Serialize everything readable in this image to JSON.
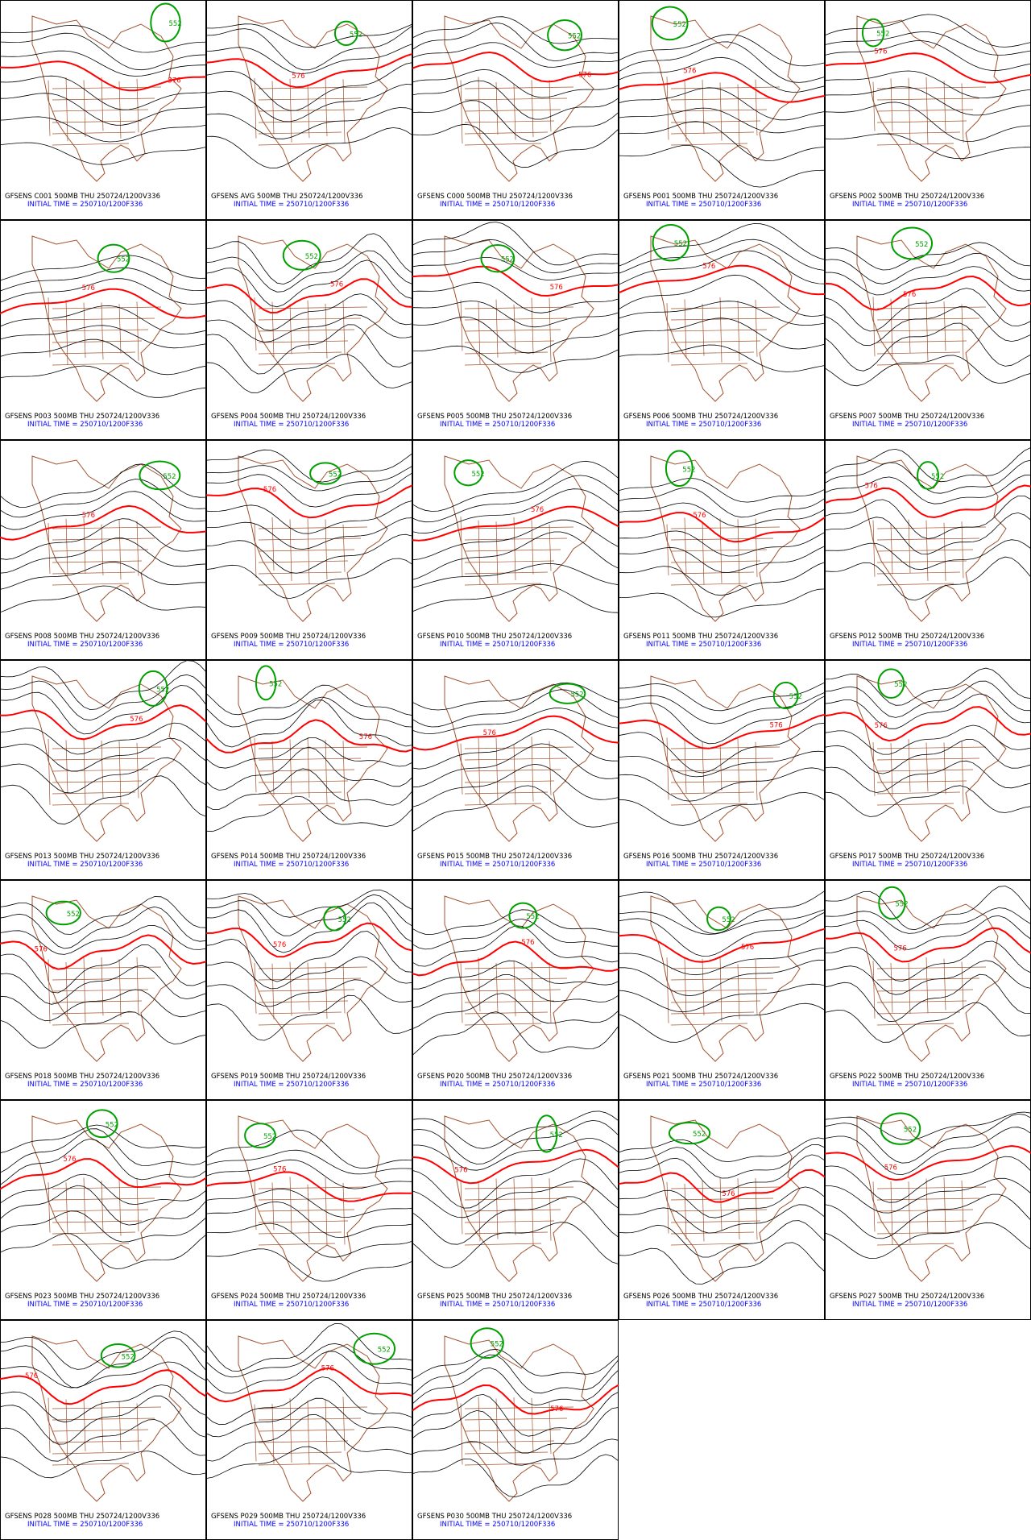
{
  "title_prefix": "GFSENS",
  "contours": [
    {
      "value": 576,
      "color": "#ff0000"
    },
    {
      "value": 552,
      "color": "#00a000"
    }
  ],
  "panels": [
    {
      "label": "GFSENS C001 500MB THU 250724/1200V336",
      "init": "INITIAL TIME = 250710/1200F336"
    },
    {
      "label": "GFSENS AVG 500MB THU 250724/1200V336",
      "init": "INITIAL TIME = 250710/1200F336"
    },
    {
      "label": "GFSENS C000 500MB THU 250724/1200V336",
      "init": "INITIAL TIME = 250710/1200F336"
    },
    {
      "label": "GFSENS P001 500MB THU 250724/1200V336",
      "init": "INITIAL TIME = 250710/1200F336"
    },
    {
      "label": "GFSENS P002 500MB THU 250724/1200V336",
      "init": "INITIAL TIME = 250710/1200F336"
    },
    {
      "label": "GFSENS P003 500MB THU 250724/1200V336",
      "init": "INITIAL TIME = 250710/1200F336"
    },
    {
      "label": "GFSENS P004 500MB THU 250724/1200V336",
      "init": "INITIAL TIME = 250710/1200F336"
    },
    {
      "label": "GFSENS P005 500MB THU 250724/1200V336",
      "init": "INITIAL TIME = 250710/1200F336"
    },
    {
      "label": "GFSENS P006 500MB THU 250724/1200V336",
      "init": "INITIAL TIME = 250710/1200F336"
    },
    {
      "label": "GFSENS P007 500MB THU 250724/1200V336",
      "init": "INITIAL TIME = 250710/1200F336"
    },
    {
      "label": "GFSENS P008 500MB THU 250724/1200V336",
      "init": "INITIAL TIME = 250710/1200F336"
    },
    {
      "label": "GFSENS P009 500MB THU 250724/1200V336",
      "init": "INITIAL TIME = 250710/1200F336"
    },
    {
      "label": "GFSENS P010 500MB THU 250724/1200V336",
      "init": "INITIAL TIME = 250710/1200F336"
    },
    {
      "label": "GFSENS P011 500MB THU 250724/1200V336",
      "init": "INITIAL TIME = 250710/1200F336"
    },
    {
      "label": "GFSENS P012 500MB THU 250724/1200V336",
      "init": "INITIAL TIME = 250710/1200F336"
    },
    {
      "label": "GFSENS P013 500MB THU 250724/1200V336",
      "init": "INITIAL TIME = 250710/1200F336"
    },
    {
      "label": "GFSENS P014 500MB THU 250724/1200V336",
      "init": "INITIAL TIME = 250710/1200F336"
    },
    {
      "label": "GFSENS P015 500MB THU 250724/1200V336",
      "init": "INITIAL TIME = 250710/1200F336"
    },
    {
      "label": "GFSENS P016 500MB THU 250724/1200V336",
      "init": "INITIAL TIME = 250710/1200F336"
    },
    {
      "label": "GFSENS P017 500MB THU 250724/1200V336",
      "init": "INITIAL TIME = 250710/1200F336"
    },
    {
      "label": "GFSENS P018 500MB THU 250724/1200V336",
      "init": "INITIAL TIME = 250710/1200F336"
    },
    {
      "label": "GFSENS P019 500MB THU 250724/1200V336",
      "init": "INITIAL TIME = 250710/1200F336"
    },
    {
      "label": "GFSENS P020 500MB THU 250724/1200V336",
      "init": "INITIAL TIME = 250710/1200F336"
    },
    {
      "label": "GFSENS P021 500MB THU 250724/1200V336",
      "init": "INITIAL TIME = 250710/1200F336"
    },
    {
      "label": "GFSENS P022 500MB THU 250724/1200V336",
      "init": "INITIAL TIME = 250710/1200F336"
    },
    {
      "label": "GFSENS P023 500MB THU 250724/1200V336",
      "init": "INITIAL TIME = 250710/1200F336"
    },
    {
      "label": "GFSENS P024 500MB THU 250724/1200V336",
      "init": "INITIAL TIME = 250710/1200F336"
    },
    {
      "label": "GFSENS P025 500MB THU 250724/1200V336",
      "init": "INITIAL TIME = 250710/1200F336"
    },
    {
      "label": "GFSENS P026 500MB THU 250724/1200V336",
      "init": "INITIAL TIME = 250710/1200F336"
    },
    {
      "label": "GFSENS P027 500MB THU 250724/1200V336",
      "init": "INITIAL TIME = 250710/1200F336"
    },
    {
      "label": "GFSENS P028 500MB THU 250724/1200V336",
      "init": "INITIAL TIME = 250710/1200F336"
    },
    {
      "label": "GFSENS P029 500MB THU 250724/1200V336",
      "init": "INITIAL TIME = 250710/1200F336"
    },
    {
      "label": "GFSENS P030 500MB THU 250724/1200V336",
      "init": "INITIAL TIME = 250710/1200F336"
    }
  ]
}
